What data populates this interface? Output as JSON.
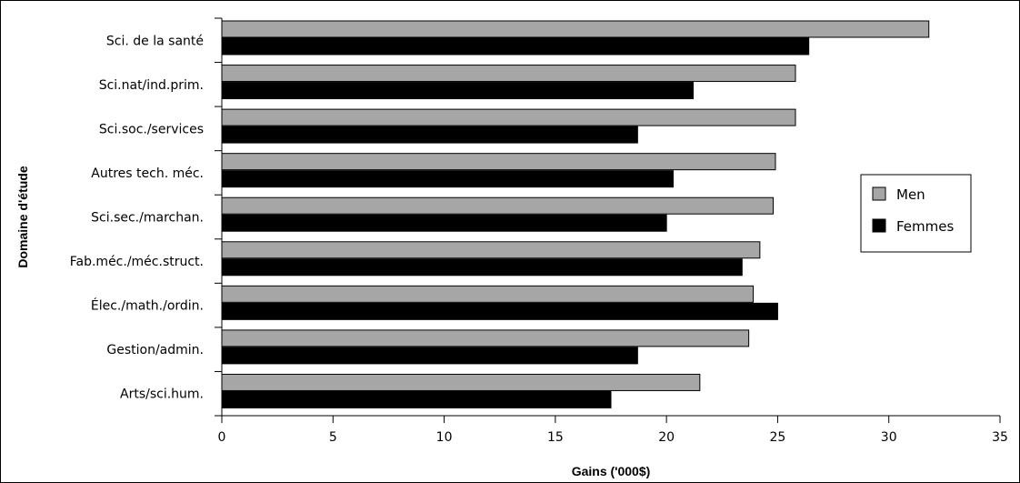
{
  "chart_data": {
    "type": "bar",
    "orientation": "horizontal",
    "categories": [
      "Sci. de la santé",
      "Sci.nat/ind.prim.",
      "Sci.soc./services",
      "Autres tech. méc.",
      "Sci.sec./marchan.",
      "Fab.méc./méc.struct.",
      "Élec./math./ordin.",
      "Gestion/admin.",
      "Arts/sci.hum."
    ],
    "series": [
      {
        "name": "Men",
        "values": [
          31.8,
          25.8,
          25.8,
          24.9,
          24.8,
          24.2,
          23.9,
          23.7,
          21.5
        ],
        "color": "#a6a6a6"
      },
      {
        "name": "Femmes",
        "values": [
          26.4,
          21.2,
          18.7,
          20.3,
          20.0,
          23.4,
          25.0,
          18.7,
          17.5
        ],
        "color": "#000000"
      }
    ],
    "xlabel": "Gains ('000$)",
    "ylabel": "Domaine d'étude",
    "xlim": [
      0,
      35
    ],
    "xticks": [
      "0",
      "5",
      "10",
      "15",
      "20",
      "25",
      "30",
      "35"
    ],
    "grid": false,
    "legend_position": "right"
  }
}
